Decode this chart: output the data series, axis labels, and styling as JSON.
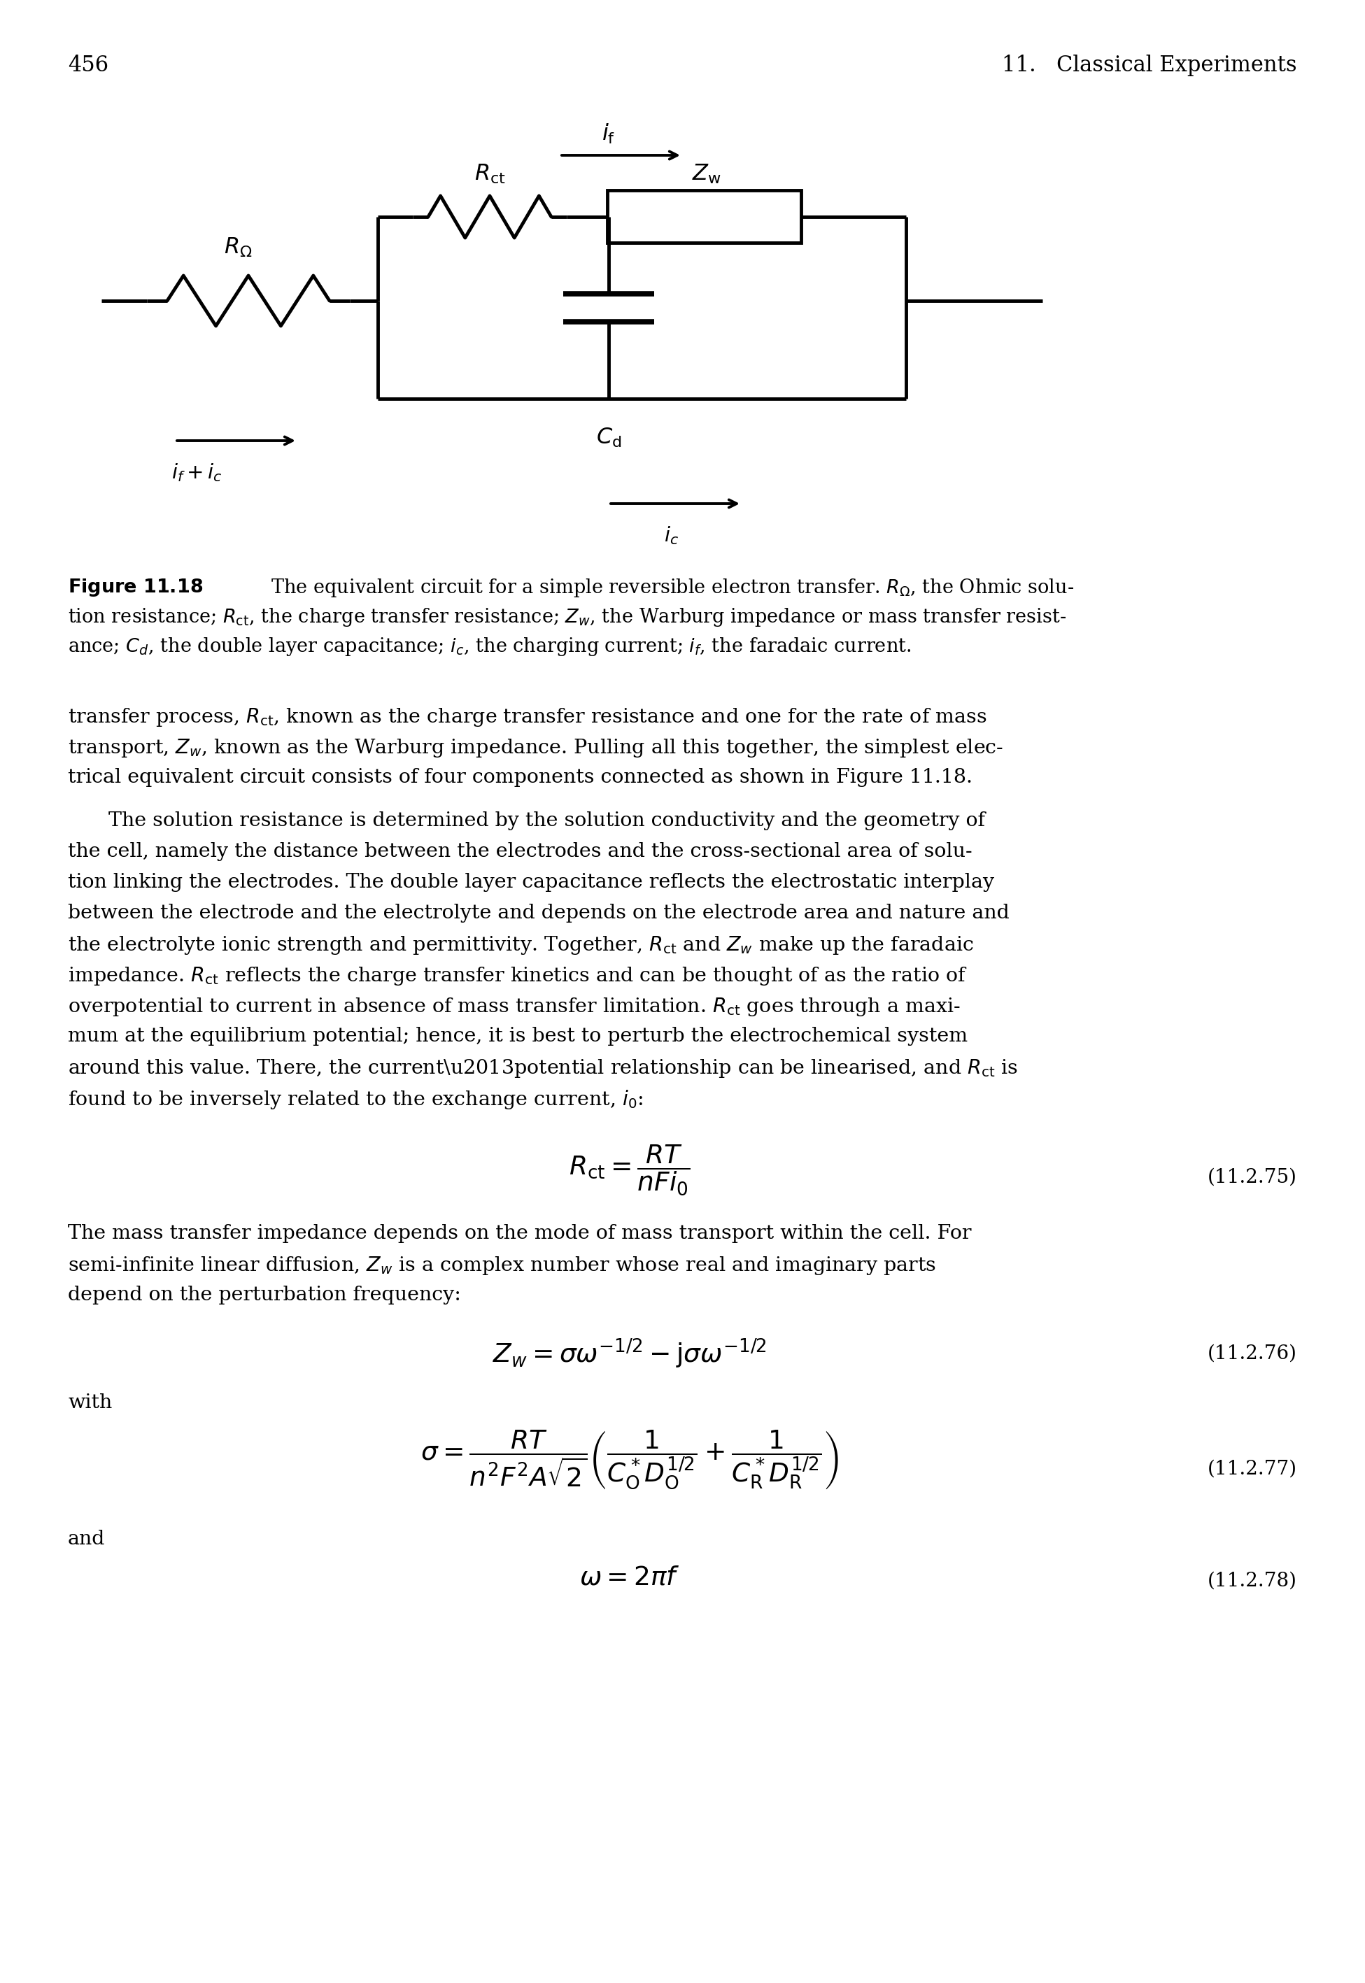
{
  "page_number": "456",
  "header_right": "11.   Classical Experiments",
  "background_color": "#ffffff",
  "eq1_label": "(11.2.75)",
  "eq2_label": "(11.2.76)",
  "eq3_label": "(11.2.77)",
  "eq4_label": "(11.2.78)"
}
